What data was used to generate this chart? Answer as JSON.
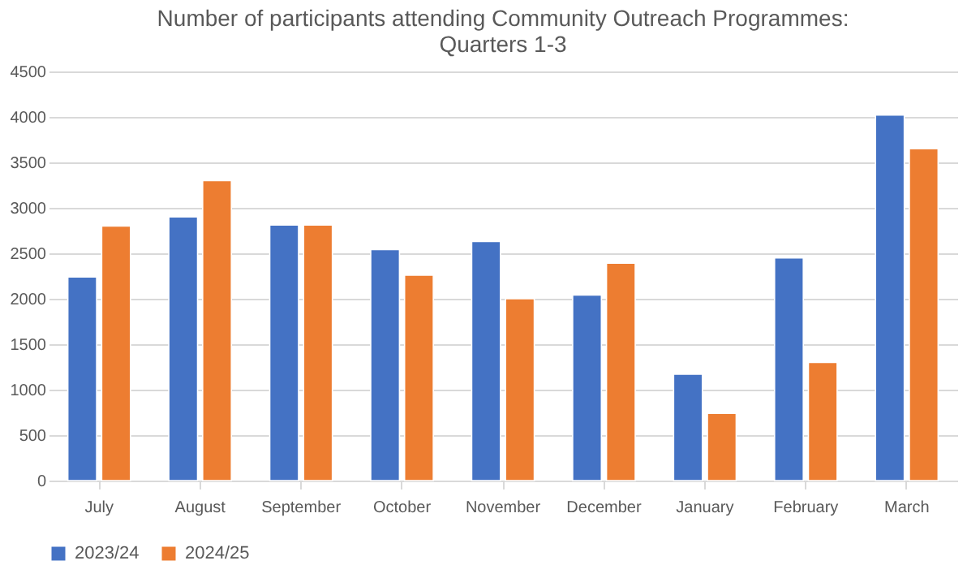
{
  "chart_data": {
    "type": "bar",
    "title": [
      "Number of participants attending Community Outreach Programmes:",
      "Quarters 1-3"
    ],
    "categories": [
      "July",
      "August",
      "September",
      "October",
      "November",
      "December",
      "January",
      "February",
      "March"
    ],
    "series": [
      {
        "name": "2023/24",
        "color": "#4472c4",
        "values": [
          2240,
          2900,
          2810,
          2540,
          2630,
          2040,
          1170,
          2450,
          4020
        ]
      },
      {
        "name": "2024/25",
        "color": "#ed7d31",
        "values": [
          2800,
          3300,
          2810,
          2260,
          2000,
          2390,
          740,
          1300,
          3650
        ]
      }
    ],
    "ylim": [
      0,
      4500
    ],
    "yticks": [
      0,
      500,
      1000,
      1500,
      2000,
      2500,
      3000,
      3500,
      4000,
      4500
    ],
    "grid": "y",
    "legend": "bottom"
  }
}
